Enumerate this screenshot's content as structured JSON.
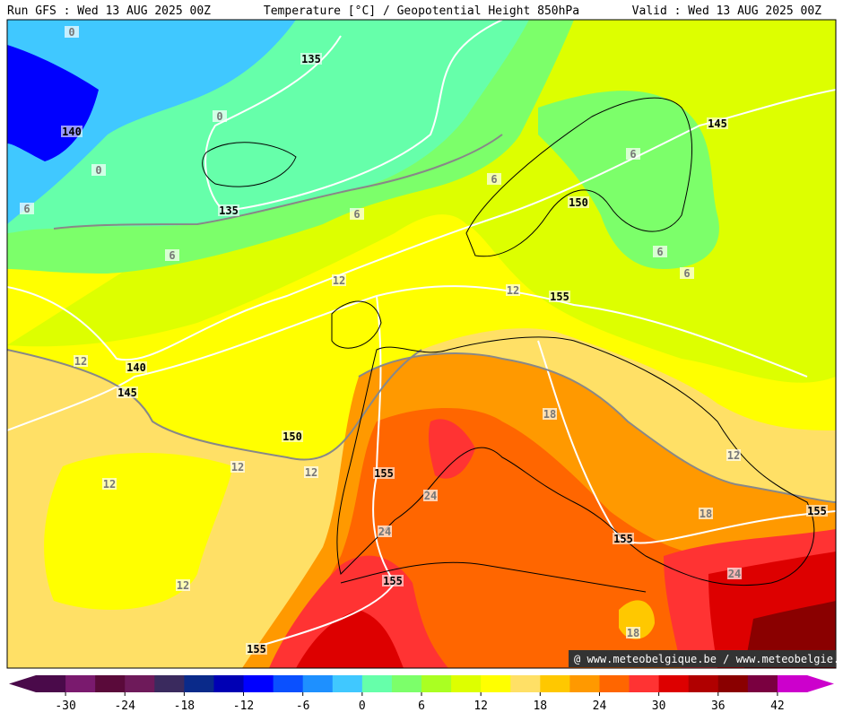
{
  "header": {
    "run": "Run GFS : Wed 13 AUG 2025 00Z",
    "title": "Temperature [°C] / Geopotential Height 850hPa",
    "valid": "Valid : Wed 13 AUG 2025 00Z"
  },
  "map": {
    "height_labels": [
      135,
      140,
      135,
      145,
      150,
      155,
      140,
      145,
      150,
      155,
      155,
      155,
      155,
      155
    ],
    "temperature_labels": [
      0,
      0,
      0,
      6,
      6,
      6,
      6,
      6,
      6,
      6,
      12,
      12,
      12,
      12,
      12,
      12,
      12,
      18,
      24,
      24,
      18,
      24,
      18,
      12
    ]
  },
  "colorbar": {
    "range": [
      -33,
      45
    ],
    "ticks": [
      -30,
      -24,
      -18,
      -12,
      -6,
      0,
      6,
      12,
      18,
      24,
      30,
      36,
      42
    ],
    "colors": [
      "#4a0a4a",
      "#7a1a6e",
      "#5a0a3a",
      "#6e1a5a",
      "#3a2a5e",
      "#0a2a8a",
      "#0000b4",
      "#0000ff",
      "#0a50ff",
      "#1e90ff",
      "#40c8ff",
      "#66ffaa",
      "#7cff6a",
      "#aaff22",
      "#ddff00",
      "#ffff00",
      "#ffe066",
      "#ffc800",
      "#ff9900",
      "#ff6600",
      "#ff3333",
      "#dd0000",
      "#b00000",
      "#8a0000",
      "#7a0040",
      "#cc00cc"
    ]
  },
  "credit": "@ www.meteobelgique.be / www.meteobelgie.be"
}
